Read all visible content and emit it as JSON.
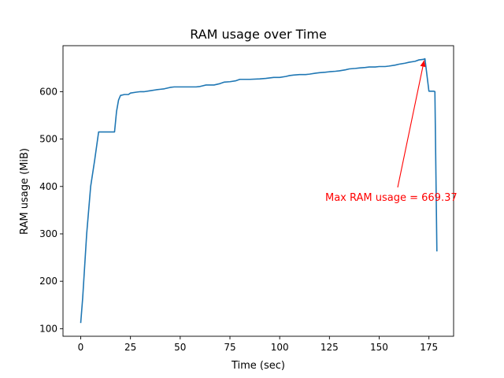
{
  "chart_data": {
    "type": "line",
    "title": "RAM usage over Time",
    "xlabel": "Time (sec)",
    "ylabel": "RAM usage (MiB)",
    "xlim": [
      -8.9,
      187.4
    ],
    "ylim": [
      84,
      697
    ],
    "xticks": [
      0,
      25,
      50,
      75,
      100,
      125,
      150,
      175
    ],
    "yticks": [
      100,
      200,
      300,
      400,
      500,
      600
    ],
    "grid": false,
    "series": [
      {
        "color": "#1f77b4",
        "x": [
          0,
          1,
          3,
          5,
          7,
          9,
          12,
          15,
          17,
          18,
          19,
          20,
          22,
          24,
          25,
          28,
          30,
          32,
          35,
          38,
          40,
          42,
          45,
          47,
          50,
          55,
          58,
          60,
          63,
          67,
          70,
          72,
          75,
          78,
          80,
          85,
          90,
          93,
          95,
          97,
          100,
          103,
          105,
          107,
          110,
          113,
          115,
          118,
          120,
          123,
          125,
          128,
          130,
          133,
          135,
          138,
          140,
          143,
          145,
          148,
          150,
          153,
          155,
          158,
          160,
          163,
          165,
          168,
          170,
          172,
          173,
          175,
          177,
          177.5,
          178,
          179
        ],
        "values": [
          112,
          165,
          300,
          400,
          455,
          515,
          515,
          515,
          515,
          558,
          582,
          592,
          594,
          594,
          597,
          599,
          600,
          600,
          602,
          604,
          605,
          606,
          609,
          610,
          610,
          610,
          610,
          611,
          614,
          614,
          617,
          620,
          621,
          623,
          626,
          626,
          627,
          628,
          629,
          630,
          630,
          632,
          634,
          635,
          636,
          636,
          637,
          639,
          640,
          641,
          642,
          643,
          644,
          646,
          648,
          649,
          650,
          651,
          652,
          652,
          653,
          653,
          654,
          656,
          658,
          660,
          662,
          664,
          667,
          668,
          669.37,
          601,
          601,
          601,
          600,
          263
        ]
      }
    ],
    "annotation": {
      "text": "Max RAM usage = 669.37",
      "color": "#ff0000",
      "point": [
        172.6,
        669.37
      ],
      "text_anchor": [
        123,
        370
      ]
    }
  }
}
